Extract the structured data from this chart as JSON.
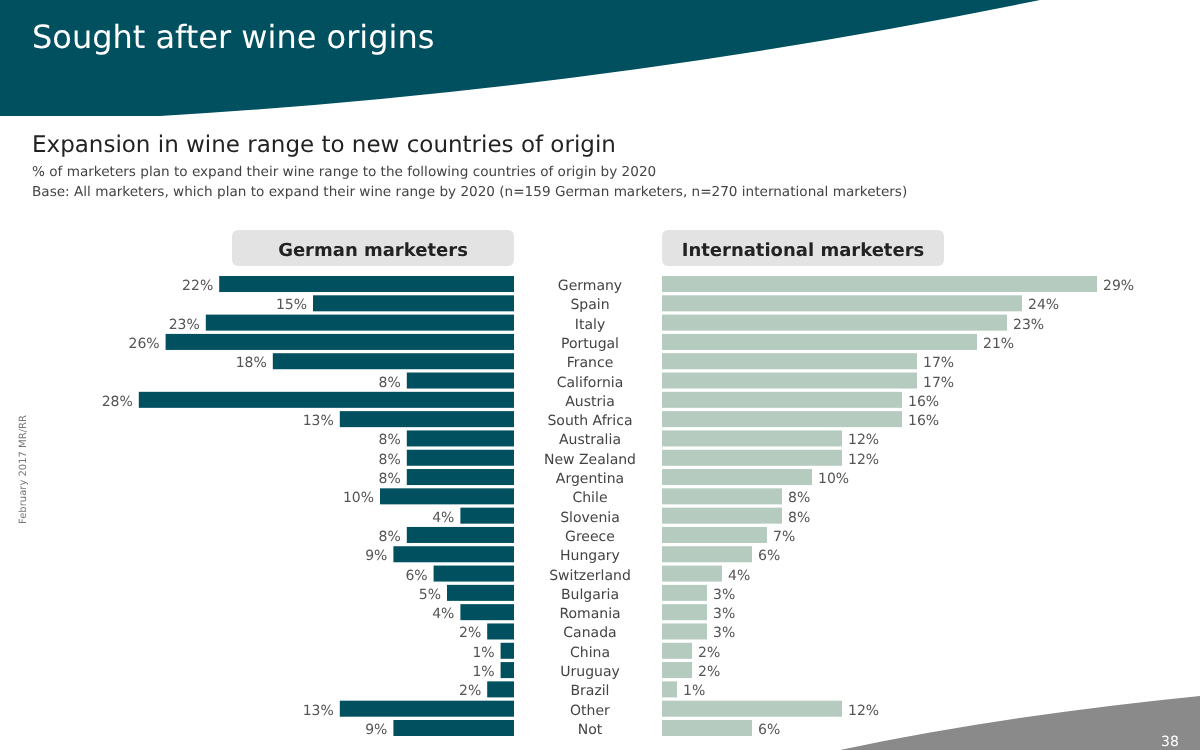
{
  "chart_data": [
    {
      "type": "bar",
      "orientation": "horizontal",
      "title": "German marketers",
      "tick_labels": false,
      "color": "#00505f",
      "categories": [
        "Germany",
        "Spain",
        "Italy",
        "Portugal",
        "France",
        "California",
        "Austria",
        "South Africa",
        "Australia",
        "New Zealand",
        "Argentina",
        "Chile",
        "Slovenia",
        "Greece",
        "Hungary",
        "Switzerland",
        "Bulgaria",
        "Romania",
        "Canada",
        "China",
        "Uruguay",
        "Brazil",
        "Other",
        "Not"
      ],
      "values": [
        22,
        15,
        23,
        26,
        18,
        8,
        28,
        13,
        8,
        8,
        8,
        10,
        4,
        8,
        9,
        6,
        5,
        4,
        2,
        1,
        1,
        2,
        13,
        9
      ],
      "value_labels": [
        "22%",
        "15%",
        "23%",
        "26%",
        "18%",
        "8%",
        "28%",
        "13%",
        "8%",
        "8%",
        "8%",
        "10%",
        "4%",
        "8%",
        "9%",
        "6%",
        "5%",
        "4%",
        "2%",
        "1%",
        "1%",
        "2%",
        "13%",
        "9%"
      ],
      "annotations": [
        "Sought after wine origins",
        "Expansion in wine range to new countries of origin",
        "% of marketers plan to expand their wine range to the following countries of origin by 2020",
        "Base: All marketers, which plan to expand their wine range by 2020  (n=159 German marketers, n=270 international marketers)",
        "February 2017 MR/RR",
        "38"
      ]
    },
    {
      "type": "bar",
      "orientation": "horizontal",
      "title": "International marketers",
      "tick_labels": "y",
      "color": "#b5cbbf",
      "categories": [
        "Germany",
        "Spain",
        "Italy",
        "Portugal",
        "France",
        "California",
        "Austria",
        "South Africa",
        "Australia",
        "New Zealand",
        "Argentina",
        "Chile",
        "Slovenia",
        "Greece",
        "Hungary",
        "Switzerland",
        "Bulgaria",
        "Romania",
        "Canada",
        "China",
        "Uruguay",
        "Brazil",
        "Other",
        "Not"
      ],
      "values": [
        29,
        24,
        23,
        21,
        17,
        17,
        16,
        16,
        12,
        12,
        10,
        8,
        8,
        7,
        6,
        4,
        3,
        3,
        3,
        2,
        2,
        1,
        12,
        6
      ],
      "value_labels": [
        "29%",
        "24%",
        "23%",
        "21%",
        "17%",
        "17%",
        "16%",
        "16%",
        "12%",
        "12%",
        "10%",
        "8%",
        "8%",
        "7%",
        "6%",
        "4%",
        "3%",
        "3%",
        "3%",
        "2%",
        "2%",
        "1%",
        "12%",
        "6%"
      ]
    }
  ]
}
